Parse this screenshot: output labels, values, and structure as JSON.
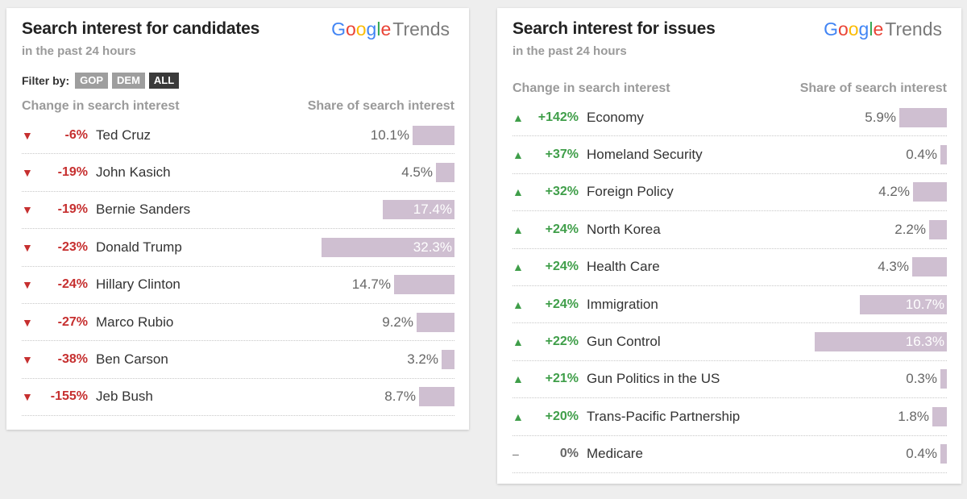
{
  "candidates": {
    "title": "Search interest for candidates",
    "subtitle": "in the past 24 hours",
    "logo": {
      "g": "G",
      "o1": "o",
      "o2": "o",
      "g2": "g",
      "l": "l",
      "e": "e",
      "trends": "Trends"
    },
    "filter": {
      "label": "Filter by:",
      "options": [
        {
          "label": "GOP",
          "active": false
        },
        {
          "label": "DEM",
          "active": false
        },
        {
          "label": "ALL",
          "active": true
        }
      ]
    },
    "col_change": "Change in search interest",
    "col_share": "Share of search interest",
    "rows": [
      {
        "arrow": "▼",
        "change": "-6%",
        "name": "Ted Cruz",
        "share": "10.1%",
        "value": 10.1,
        "dir": "down"
      },
      {
        "arrow": "▼",
        "change": "-19%",
        "name": "John Kasich",
        "share": "4.5%",
        "value": 4.5,
        "dir": "down"
      },
      {
        "arrow": "▼",
        "change": "-19%",
        "name": "Bernie Sanders",
        "share": "17.4%",
        "value": 17.4,
        "dir": "down"
      },
      {
        "arrow": "▼",
        "change": "-23%",
        "name": "Donald Trump",
        "share": "32.3%",
        "value": 32.3,
        "dir": "down"
      },
      {
        "arrow": "▼",
        "change": "-24%",
        "name": "Hillary Clinton",
        "share": "14.7%",
        "value": 14.7,
        "dir": "down"
      },
      {
        "arrow": "▼",
        "change": "-27%",
        "name": "Marco Rubio",
        "share": "9.2%",
        "value": 9.2,
        "dir": "down"
      },
      {
        "arrow": "▼",
        "change": "-38%",
        "name": "Ben Carson",
        "share": "3.2%",
        "value": 3.2,
        "dir": "down"
      },
      {
        "arrow": "▼",
        "change": "-155%",
        "name": "Jeb Bush",
        "share": "8.7%",
        "value": 8.7,
        "dir": "down"
      }
    ]
  },
  "issues": {
    "title": "Search interest for issues",
    "subtitle": "in the past 24 hours",
    "logo": {
      "g": "G",
      "o1": "o",
      "o2": "o",
      "g2": "g",
      "l": "l",
      "e": "e",
      "trends": "Trends"
    },
    "col_change": "Change in search interest",
    "col_share": "Share of search interest",
    "rows": [
      {
        "arrow": "▲",
        "change": "+142%",
        "name": "Economy",
        "share": "5.9%",
        "value": 5.9,
        "dir": "up"
      },
      {
        "arrow": "▲",
        "change": "+37%",
        "name": "Homeland Security",
        "share": "0.4%",
        "value": 0.4,
        "dir": "up"
      },
      {
        "arrow": "▲",
        "change": "+32%",
        "name": "Foreign Policy",
        "share": "4.2%",
        "value": 4.2,
        "dir": "up"
      },
      {
        "arrow": "▲",
        "change": "+24%",
        "name": "North Korea",
        "share": "2.2%",
        "value": 2.2,
        "dir": "up"
      },
      {
        "arrow": "▲",
        "change": "+24%",
        "name": "Health Care",
        "share": "4.3%",
        "value": 4.3,
        "dir": "up"
      },
      {
        "arrow": "▲",
        "change": "+24%",
        "name": "Immigration",
        "share": "10.7%",
        "value": 10.7,
        "dir": "up"
      },
      {
        "arrow": "▲",
        "change": "+22%",
        "name": "Gun Control",
        "share": "16.3%",
        "value": 16.3,
        "dir": "up"
      },
      {
        "arrow": "▲",
        "change": "+21%",
        "name": "Gun Politics in the US",
        "share": "0.3%",
        "value": 0.3,
        "dir": "up"
      },
      {
        "arrow": "▲",
        "change": "+20%",
        "name": "Trans-Pacific Partnership",
        "share": "1.8%",
        "value": 1.8,
        "dir": "up"
      },
      {
        "arrow": "–",
        "change": "0%",
        "name": "Medicare",
        "share": "0.4%",
        "value": 0.4,
        "dir": "flat"
      }
    ]
  },
  "colors": {
    "bar": "#cfbfd1",
    "down": "#c62f2f",
    "up": "#3f9e49"
  }
}
